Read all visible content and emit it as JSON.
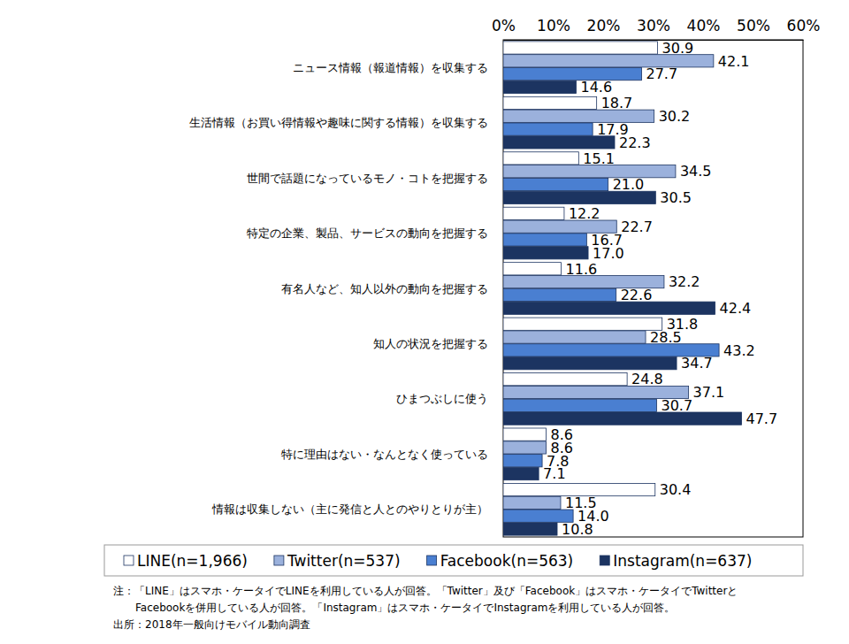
{
  "chart_data": {
    "type": "bar",
    "orientation": "horizontal",
    "data_labels": true,
    "legend": "bottom",
    "grid": false,
    "categories": [
      "ニュース情報（報道情報）を収集する",
      "生活情報（お買い得情報や趣味に関する情報）を収集する",
      "世間で話題になっているモノ・コトを把握する",
      "特定の企業、製品、サービスの動向を把握する",
      "有名人など、知人以外の動向を把握する",
      "知人の状況を把握する",
      "ひまつぶしに使う",
      "特に理由はない・なんとなく使っている",
      "情報は収集しない（主に発信と人とのやりとりが主）"
    ],
    "series": [
      {
        "name": "LINE(n=1,966)",
        "color": "#ffffff",
        "values": [
          30.9,
          18.7,
          15.1,
          12.2,
          11.6,
          31.8,
          24.8,
          8.6,
          30.4
        ]
      },
      {
        "name": "Twitter(n=537)",
        "color": "#9bb1dc",
        "values": [
          42.1,
          30.2,
          34.5,
          22.7,
          32.2,
          28.5,
          37.1,
          8.6,
          11.5
        ]
      },
      {
        "name": "Facebook(n=563)",
        "color": "#4a7fd1",
        "values": [
          27.7,
          17.9,
          21.0,
          16.7,
          22.6,
          43.2,
          30.7,
          7.8,
          14.0
        ]
      },
      {
        "name": "Instagram(n=637)",
        "color": "#1c3461",
        "values": [
          14.6,
          22.3,
          30.5,
          17.0,
          42.4,
          34.7,
          47.7,
          7.1,
          10.8
        ]
      }
    ],
    "xlim": [
      0,
      60
    ],
    "xticks": [
      {
        "value": 0,
        "label": "0%"
      },
      {
        "value": 10,
        "label": "10%"
      },
      {
        "value": 20,
        "label": "20%"
      },
      {
        "value": 30,
        "label": "30%"
      },
      {
        "value": 40,
        "label": "40%"
      },
      {
        "value": 50,
        "label": "50%"
      },
      {
        "value": 60,
        "label": "60%"
      }
    ],
    "annotations": [
      "注：「LINE」はスマホ・ケータイでLINEを利用している人が回答。「Twitter」及び「Facebook」はスマホ・ケータイでTwitterと",
      "Facebookを併用している人が回答。「Instagram」はスマホ・ケータイでInstagramを利用している人が回答。",
      "出所：2018年一般向けモバイル動向調査"
    ]
  }
}
